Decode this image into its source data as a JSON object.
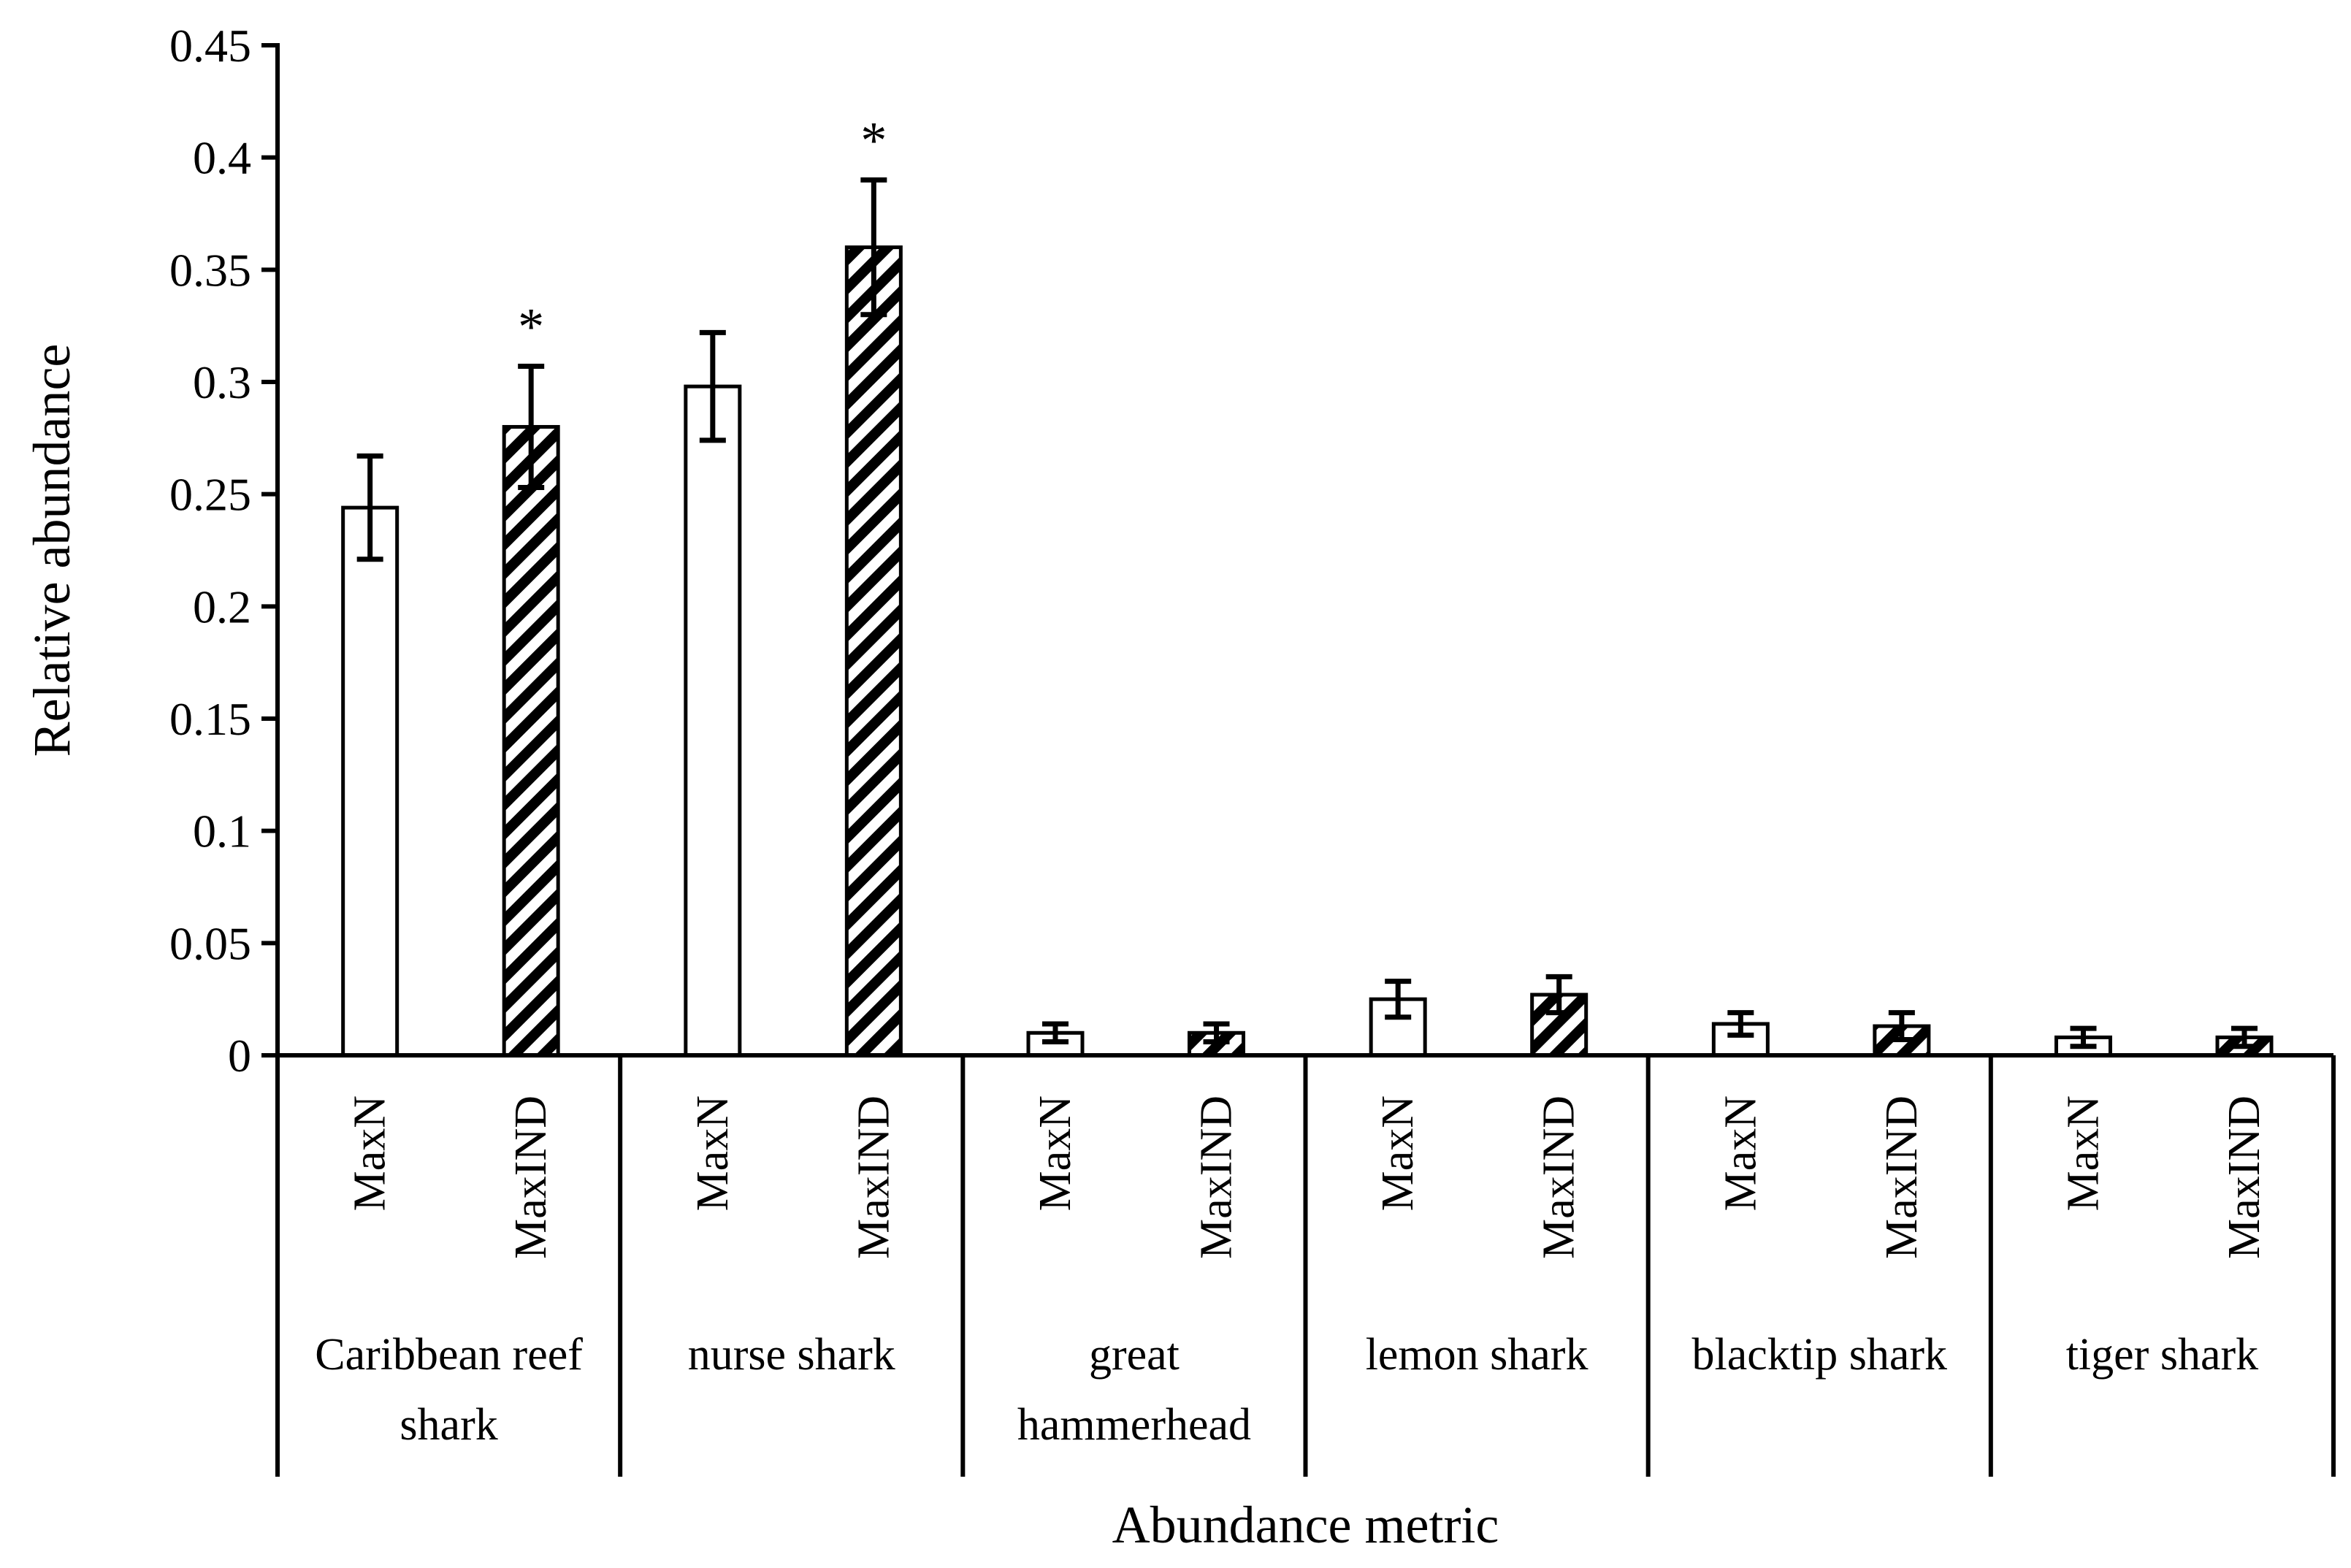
{
  "chart_data": {
    "type": "bar",
    "xlabel": "Abundance metric",
    "ylabel": "Relative abundance",
    "ylim": [
      0,
      0.45
    ],
    "y_ticks": [
      "0",
      "0.05",
      "0.1",
      "0.15",
      "0.2",
      "0.25",
      "0.3",
      "0.35",
      "0.4",
      "0.45"
    ],
    "grid": false,
    "legend": "none",
    "groups": [
      {
        "label": "Caribbean reef shark",
        "label_lines": [
          "Caribbean reef",
          "shark"
        ]
      },
      {
        "label": "nurse shark",
        "label_lines": [
          "nurse shark"
        ]
      },
      {
        "label": "great hammerhead",
        "label_lines": [
          "great",
          "hammerhead"
        ]
      },
      {
        "label": "lemon shark",
        "label_lines": [
          "lemon shark"
        ]
      },
      {
        "label": "blacktip shark",
        "label_lines": [
          "blacktip shark"
        ]
      },
      {
        "label": "tiger shark",
        "label_lines": [
          "tiger shark"
        ]
      }
    ],
    "series": [
      {
        "name": "MaxN",
        "fill": "white",
        "values": [
          0.244,
          0.298,
          0.01,
          0.025,
          0.014,
          0.008
        ],
        "errors": [
          0.023,
          0.024,
          0.004,
          0.008,
          0.005,
          0.004
        ],
        "significant": [
          false,
          false,
          false,
          false,
          false,
          false
        ]
      },
      {
        "name": "MaxIND",
        "fill": "diagonal-hatch",
        "values": [
          0.28,
          0.36,
          0.01,
          0.027,
          0.013,
          0.008
        ],
        "errors": [
          0.027,
          0.03,
          0.004,
          0.008,
          0.006,
          0.004
        ],
        "significant": [
          true,
          true,
          false,
          false,
          false,
          false
        ]
      }
    ],
    "significance_marker": "*",
    "colors": {
      "bar_stroke": "#000000",
      "hatch": "#000000",
      "background": "#ffffff"
    }
  }
}
